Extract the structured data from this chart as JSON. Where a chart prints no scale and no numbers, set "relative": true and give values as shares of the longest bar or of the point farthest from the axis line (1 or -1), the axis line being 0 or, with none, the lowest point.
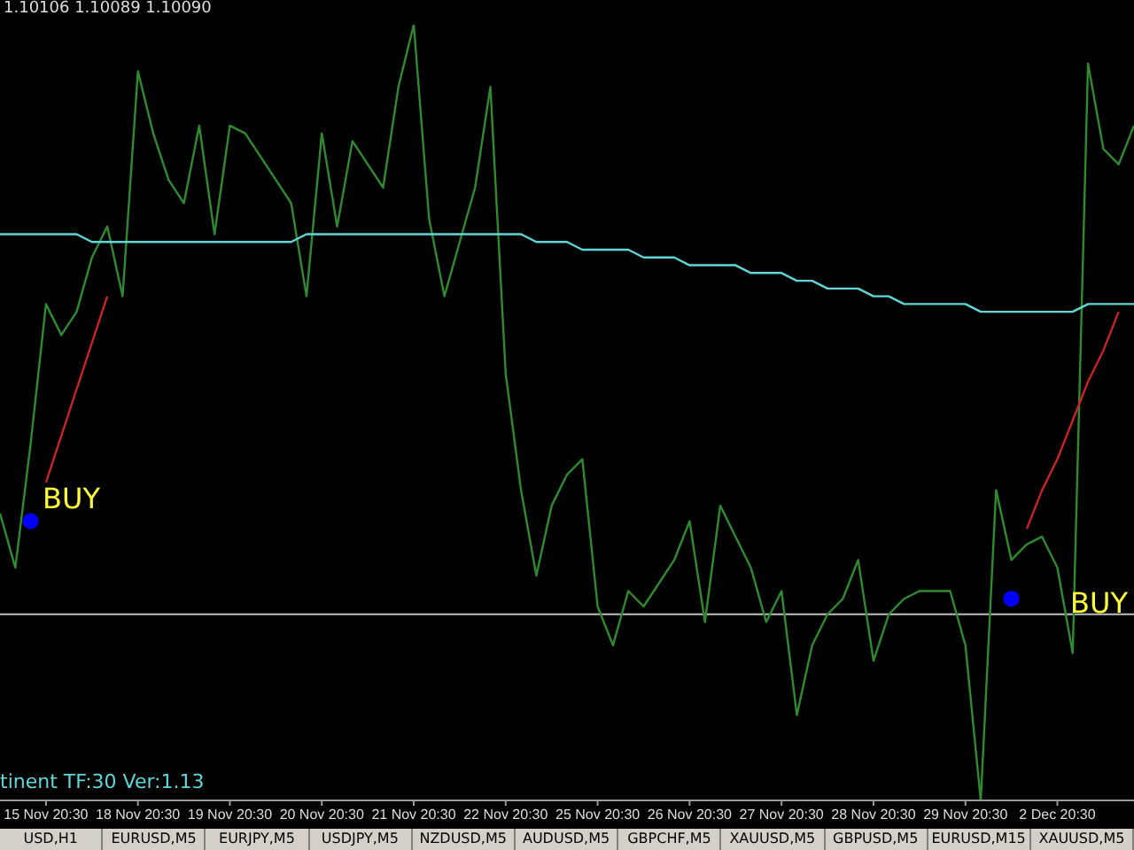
{
  "chart_data": {
    "type": "line",
    "relative": true,
    "tick_labels": "x",
    "marker": "none",
    "categories": [
      null,
      null,
      null,
      "15 Nov 20:30",
      null,
      null,
      null,
      null,
      null,
      "18 Nov 20:30",
      null,
      null,
      null,
      null,
      null,
      "19 Nov 20:30",
      null,
      null,
      null,
      null,
      null,
      "20 Nov 20:30",
      null,
      null,
      null,
      null,
      null,
      "21 Nov 20:30",
      null,
      null,
      null,
      null,
      null,
      "22 Nov 20:30",
      null,
      null,
      null,
      null,
      null,
      "25 Nov 20:30",
      null,
      null,
      null,
      null,
      null,
      "26 Nov 20:30",
      null,
      null,
      null,
      null,
      null,
      "27 Nov 20:30",
      null,
      null,
      null,
      null,
      null,
      "28 Nov 20:30",
      null,
      null,
      null,
      null,
      null,
      "29 Nov 20:30",
      null,
      null,
      null,
      null,
      null,
      "2 Dec 20:30",
      null,
      null,
      null,
      null,
      null
    ],
    "series": [
      {
        "color": "#2e8b2e",
        "values": [
          0.37,
          0.3,
          0.46,
          0.64,
          0.6,
          0.63,
          0.7,
          0.74,
          0.65,
          0.94,
          0.86,
          0.8,
          0.77,
          0.87,
          0.73,
          0.87,
          0.86,
          0.83,
          0.8,
          0.77,
          0.65,
          0.86,
          0.74,
          0.85,
          0.82,
          0.79,
          0.92,
          1.0,
          0.75,
          0.65,
          0.72,
          0.79,
          0.92,
          0.55,
          0.4,
          0.29,
          0.38,
          0.42,
          0.44,
          0.25,
          0.2,
          0.27,
          0.25,
          0.28,
          0.31,
          0.36,
          0.23,
          0.38,
          0.34,
          0.3,
          0.23,
          0.27,
          0.11,
          0.2,
          0.24,
          0.26,
          0.31,
          0.18,
          0.24,
          0.26,
          0.27,
          0.27,
          0.27,
          0.2,
          0.0,
          0.4,
          0.31,
          0.33,
          0.34,
          0.3,
          0.19,
          0.95,
          0.84,
          0.82,
          0.87
        ]
      },
      {
        "type": "line",
        "color": "#5fd7d7",
        "values": [
          0.73,
          0.73,
          0.73,
          0.73,
          0.73,
          0.73,
          0.72,
          0.72,
          0.72,
          0.72,
          0.72,
          0.72,
          0.72,
          0.72,
          0.72,
          0.72,
          0.72,
          0.72,
          0.72,
          0.72,
          0.73,
          0.73,
          0.73,
          0.73,
          0.73,
          0.73,
          0.73,
          0.73,
          0.73,
          0.73,
          0.73,
          0.73,
          0.73,
          0.73,
          0.73,
          0.72,
          0.72,
          0.72,
          0.71,
          0.71,
          0.71,
          0.71,
          0.7,
          0.7,
          0.7,
          0.69,
          0.69,
          0.69,
          0.69,
          0.68,
          0.68,
          0.68,
          0.67,
          0.67,
          0.66,
          0.66,
          0.66,
          0.65,
          0.65,
          0.64,
          0.64,
          0.64,
          0.64,
          0.64,
          0.63,
          0.63,
          0.63,
          0.63,
          0.63,
          0.63,
          0.63,
          0.64,
          0.64,
          0.64,
          0.64
        ]
      },
      {
        "type": "line",
        "color": "#cc2222",
        "values": [
          null,
          null,
          null,
          0.41,
          0.47,
          0.53,
          0.59,
          0.65,
          null,
          null,
          null,
          null,
          null,
          null,
          null,
          null,
          null,
          null,
          null,
          null,
          null,
          null,
          null,
          null,
          null,
          null,
          null,
          null,
          null,
          null,
          null,
          null,
          null,
          null,
          null,
          null,
          null,
          null,
          null,
          null,
          null,
          null,
          null,
          null,
          null,
          null,
          null,
          null,
          null,
          null,
          null,
          null,
          null,
          null,
          null,
          null,
          null,
          null,
          null,
          null,
          null,
          null,
          null,
          null,
          null,
          null,
          null,
          null,
          null,
          null,
          null,
          null,
          null,
          null,
          null
        ]
      },
      {
        "type": "line",
        "color": "#cc2222",
        "values": [
          null,
          null,
          null,
          null,
          null,
          null,
          null,
          null,
          null,
          null,
          null,
          null,
          null,
          null,
          null,
          null,
          null,
          null,
          null,
          null,
          null,
          null,
          null,
          null,
          null,
          null,
          null,
          null,
          null,
          null,
          null,
          null,
          null,
          null,
          null,
          null,
          null,
          null,
          null,
          null,
          null,
          null,
          null,
          null,
          null,
          null,
          null,
          null,
          null,
          null,
          null,
          null,
          null,
          null,
          null,
          null,
          null,
          null,
          null,
          null,
          null,
          null,
          null,
          null,
          null,
          null,
          null,
          0.35,
          0.4,
          0.44,
          0.49,
          0.54,
          0.58,
          0.63,
          null
        ]
      },
      {
        "type": "scatter",
        "color": "#0000ff",
        "marker": "circle",
        "values": [
          null,
          null,
          0.36,
          null,
          null,
          null,
          null,
          null,
          null,
          null,
          null,
          null,
          null,
          null,
          null,
          null,
          null,
          null,
          null,
          null,
          null,
          null,
          null,
          null,
          null,
          null,
          null,
          null,
          null,
          null,
          null,
          null,
          null,
          null,
          null,
          null,
          null,
          null,
          null,
          null,
          null,
          null,
          null,
          null,
          null,
          null,
          null,
          null,
          null,
          null,
          null,
          null,
          null,
          null,
          null,
          null,
          null,
          null,
          null,
          null,
          null,
          null,
          null,
          null,
          null,
          null,
          0.26,
          null,
          null,
          null,
          null,
          null,
          null,
          null,
          null
        ]
      }
    ],
    "ref_lines": [
      {
        "axis": "y",
        "value": 0.24,
        "color": "#c0c0c0"
      }
    ],
    "annotations": [
      "1.10106 1.10089 1.10090",
      "tinent TF:30 Ver:1.13",
      "BUY",
      "BUY",
      "USD,H1",
      "EURUSD,M5",
      "EURJPY,M5",
      "USDJPY,M5",
      "NZDUSD,M5",
      "AUDUSD,M5",
      "GBPCHF,M5",
      "XAUUSD,M5",
      "GBPUSD,M5",
      "EURUSD,M15",
      "XAUUSD,M5"
    ]
  }
}
